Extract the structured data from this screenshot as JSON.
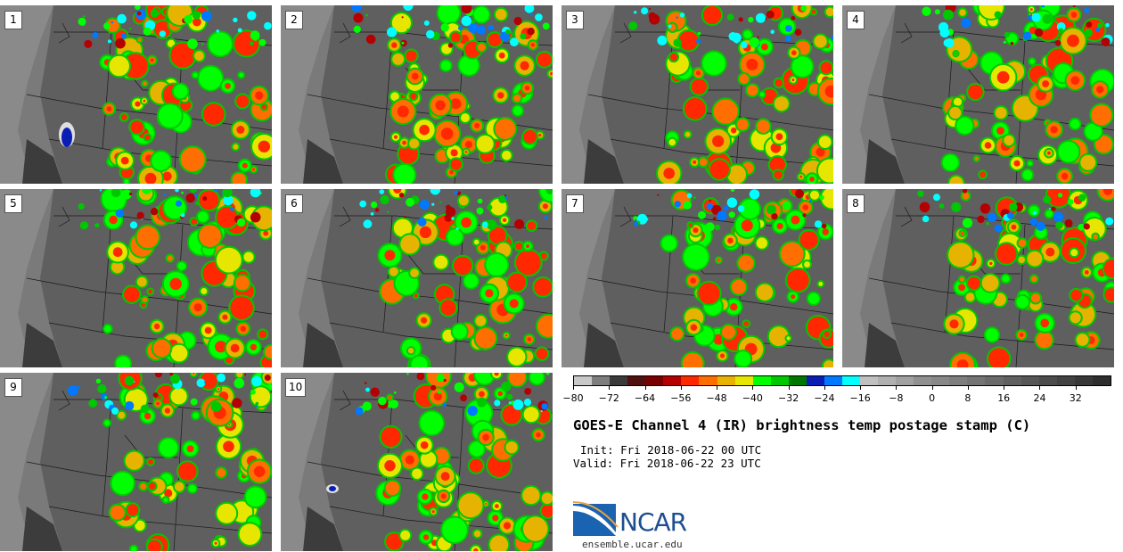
{
  "panels": [
    {
      "label": "1"
    },
    {
      "label": "2"
    },
    {
      "label": "3"
    },
    {
      "label": "4"
    },
    {
      "label": "5"
    },
    {
      "label": "6"
    },
    {
      "label": "7"
    },
    {
      "label": "8"
    },
    {
      "label": "9"
    },
    {
      "label": "10"
    }
  ],
  "colorbar": {
    "ticks": [
      "−80",
      "−72",
      "−64",
      "−56",
      "−48",
      "−40",
      "−32",
      "−24",
      "−16",
      "−8",
      "0",
      "8",
      "16",
      "24",
      "32"
    ],
    "colors": [
      "#c8c8c8",
      "#7d7d7d",
      "#3a3a3a",
      "#501010",
      "#780000",
      "#b40000",
      "#ff2800",
      "#ff6e00",
      "#e6b400",
      "#e6e600",
      "#00ff00",
      "#00c800",
      "#007800",
      "#0a1eb4",
      "#0078ff",
      "#00ffff",
      "#c0c0c0",
      "#b0b0b0",
      "#a0a0a0",
      "#909090",
      "#888888",
      "#7e7e7e",
      "#747474",
      "#6a6a6a",
      "#606060",
      "#565656",
      "#4c4c4c",
      "#424242",
      "#383838",
      "#2e2e2e"
    ]
  },
  "title": "GOES-E Channel 4 (IR) brightness temp postage stamp (C)",
  "init": "Init: Fri 2018-06-22 00 UTC",
  "valid": "Valid: Fri 2018-06-22 23 UTC",
  "logo": {
    "text": "NCAR",
    "name": "ncar-logo"
  },
  "site": "ensemble.ucar.edu"
}
